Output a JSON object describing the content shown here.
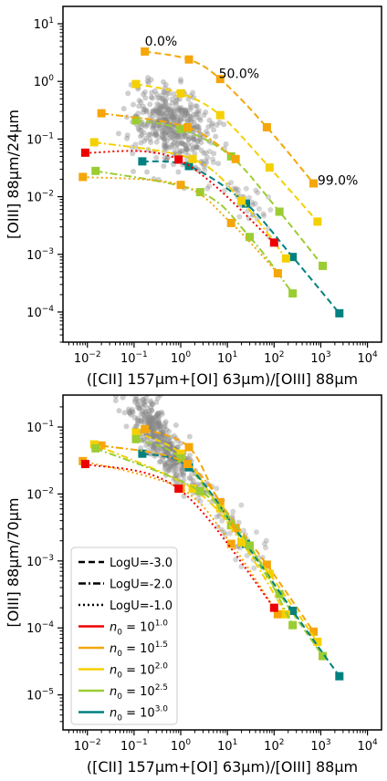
{
  "chart_data": [
    {
      "type": "scatter",
      "id": "top",
      "xlabel": "([CII] 157μm+[OI] 63μm)/[OIII] 88μm",
      "ylabel": "[OIII] 88μm/24μm",
      "xscale": "log",
      "yscale": "log",
      "xlim": [
        0.003,
        20000
      ],
      "ylim": [
        3e-05,
        20
      ],
      "xticks": [
        {
          "v": 0.01,
          "b": "10",
          "e": "−2"
        },
        {
          "v": 0.1,
          "b": "10",
          "e": "−1"
        },
        {
          "v": 1,
          "b": "10",
          "e": "0"
        },
        {
          "v": 10,
          "b": "10",
          "e": "1"
        },
        {
          "v": 100,
          "b": "10",
          "e": "2"
        },
        {
          "v": 1000,
          "b": "10",
          "e": "3"
        },
        {
          "v": 10000,
          "b": "10",
          "e": "4"
        }
      ],
      "yticks": [
        {
          "v": 0.0001,
          "b": "10",
          "e": "−4"
        },
        {
          "v": 0.001,
          "b": "10",
          "e": "−3"
        },
        {
          "v": 0.01,
          "b": "10",
          "e": "−2"
        },
        {
          "v": 0.1,
          "b": "10",
          "e": "−1"
        },
        {
          "v": 1,
          "b": "10",
          "e": "0"
        },
        {
          "v": 10,
          "b": "10",
          "e": "1"
        }
      ],
      "annotations": [
        {
          "text": "0.0%",
          "x": 0.17,
          "y": 4.2
        },
        {
          "text": "50.0%",
          "x": 6.5,
          "y": 1.15
        },
        {
          "text": "99.0%",
          "x": 850,
          "y": 0.016
        }
      ],
      "observations": {
        "color": "#888888",
        "xc": 0.6,
        "yc": 0.18,
        "sx": 0.42,
        "sy": 0.32,
        "slope": -0.12,
        "n": 420,
        "tail": [
          [
            3,
            0.04
          ],
          [
            20,
            0.012
          ],
          [
            40,
            0.006
          ]
        ]
      },
      "series": [
        {
          "logU": -3.0,
          "n0": 1.5,
          "color": "#f5a60a",
          "dash": "dash",
          "x": [
            0.17,
            1.5,
            7,
            70,
            700
          ],
          "y": [
            3.3,
            2.4,
            1.1,
            0.16,
            0.017
          ]
        },
        {
          "logU": -3.0,
          "n0": 2.0,
          "color": "#f5d000",
          "dash": "dash",
          "x": [
            0.11,
            1.0,
            7,
            80,
            850
          ],
          "y": [
            0.9,
            0.62,
            0.26,
            0.032,
            0.0037
          ]
        },
        {
          "logU": -3.0,
          "n0": 2.5,
          "color": "#9acd32",
          "dash": "dash",
          "x": [
            0.11,
            1.0,
            12,
            130,
            1100
          ],
          "y": [
            0.21,
            0.15,
            0.05,
            0.0055,
            0.00063
          ]
        },
        {
          "logU": -3.0,
          "n0": 3.0,
          "color": "#008080",
          "dash": "dash",
          "x": [
            0.15,
            1.5,
            25,
            250,
            2500
          ],
          "y": [
            0.041,
            0.034,
            0.0076,
            0.0009,
            9.5e-05
          ]
        },
        {
          "logU": -2.0,
          "n0": 1.5,
          "color": "#f5a60a",
          "dash": "dashdot",
          "x": [
            0.02,
            1.4,
            15
          ],
          "y": [
            0.28,
            0.16,
            0.045
          ]
        },
        {
          "logU": -2.0,
          "n0": 2.0,
          "color": "#f5d000",
          "dash": "dashdot",
          "x": [
            0.014,
            1.8,
            20,
            180
          ],
          "y": [
            0.088,
            0.045,
            0.0085,
            0.00085
          ]
        },
        {
          "logU": -2.0,
          "n0": 2.5,
          "color": "#9acd32",
          "dash": "dashdot",
          "x": [
            0.015,
            2.6,
            30,
            250
          ],
          "y": [
            0.028,
            0.012,
            0.002,
            0.00021
          ]
        },
        {
          "logU": -1.0,
          "n0": 1.5,
          "color": "#f5a60a",
          "dash": "dot",
          "x": [
            0.008,
            1.0,
            12,
            120
          ],
          "y": [
            0.022,
            0.016,
            0.0035,
            0.00047
          ]
        },
        {
          "logU": -1.0,
          "n0": 1.0,
          "color": "#ee0000",
          "dash": "dot",
          "x": [
            0.009,
            0.9,
            100
          ],
          "y": [
            0.058,
            0.044,
            0.0016
          ]
        }
      ]
    },
    {
      "type": "scatter",
      "id": "bottom",
      "xlabel": "([CII] 157μm+[OI] 63μm)/[OIII] 88μm",
      "ylabel": "[OIII] 88μm/70μm",
      "xscale": "log",
      "yscale": "log",
      "xlim": [
        0.003,
        20000
      ],
      "ylim": [
        3e-06,
        0.3
      ],
      "xticks": [
        {
          "v": 0.01,
          "b": "10",
          "e": "−2"
        },
        {
          "v": 0.1,
          "b": "10",
          "e": "−1"
        },
        {
          "v": 1,
          "b": "10",
          "e": "0"
        },
        {
          "v": 10,
          "b": "10",
          "e": "1"
        },
        {
          "v": 100,
          "b": "10",
          "e": "2"
        },
        {
          "v": 1000,
          "b": "10",
          "e": "3"
        },
        {
          "v": 10000,
          "b": "10",
          "e": "4"
        }
      ],
      "yticks": [
        {
          "v": 1e-05,
          "b": "10",
          "e": "−5"
        },
        {
          "v": 0.0001,
          "b": "10",
          "e": "−4"
        },
        {
          "v": 0.001,
          "b": "10",
          "e": "−3"
        },
        {
          "v": 0.01,
          "b": "10",
          "e": "−2"
        },
        {
          "v": 0.1,
          "b": "10",
          "e": "−1"
        }
      ],
      "observations": {
        "color": "#888888",
        "xc": 0.35,
        "yc": 0.07,
        "sx": 0.35,
        "sy": 0.22,
        "slope": -0.85,
        "n": 420,
        "tail": [
          [
            3,
            0.012
          ],
          [
            10,
            0.004
          ],
          [
            30,
            0.0015
          ]
        ]
      },
      "series": [
        {
          "logU": -3.0,
          "n0": 1.5,
          "color": "#f5a60a",
          "dash": "dash",
          "x": [
            0.17,
            1.5,
            7,
            70,
            700
          ],
          "y": [
            0.093,
            0.05,
            0.0075,
            0.00088,
            8.8e-05
          ]
        },
        {
          "logU": -3.0,
          "n0": 2.0,
          "color": "#f5d000",
          "dash": "dash",
          "x": [
            0.11,
            1.0,
            7,
            80,
            850
          ],
          "y": [
            0.083,
            0.04,
            0.0061,
            0.00064,
            6.2e-05
          ]
        },
        {
          "logU": -3.0,
          "n0": 2.5,
          "color": "#9acd32",
          "dash": "dash",
          "x": [
            0.11,
            1.0,
            12,
            130,
            1100
          ],
          "y": [
            0.066,
            0.034,
            0.0034,
            0.00032,
            3.8e-05
          ]
        },
        {
          "logU": -3.0,
          "n0": 3.0,
          "color": "#008080",
          "dash": "dash",
          "x": [
            0.15,
            1.5,
            25,
            250,
            2500
          ],
          "y": [
            0.04,
            0.025,
            0.0018,
            0.00018,
            1.9e-05
          ]
        },
        {
          "logU": -2.0,
          "n0": 1.5,
          "color": "#f5a60a",
          "dash": "dashdot",
          "x": [
            0.02,
            1.4,
            15
          ],
          "y": [
            0.053,
            0.028,
            0.0031
          ]
        },
        {
          "logU": -2.0,
          "n0": 2.0,
          "color": "#f5d000",
          "dash": "dashdot",
          "x": [
            0.014,
            1.8,
            20,
            180
          ],
          "y": [
            0.055,
            0.012,
            0.0019,
            0.00016
          ]
        },
        {
          "logU": -2.0,
          "n0": 2.5,
          "color": "#9acd32",
          "dash": "dashdot",
          "x": [
            0.015,
            2.6,
            30,
            250
          ],
          "y": [
            0.048,
            0.011,
            0.0017,
            0.00011
          ]
        },
        {
          "logU": -1.0,
          "n0": 1.5,
          "color": "#f5a60a",
          "dash": "dot",
          "x": [
            0.008,
            1.0,
            12,
            120
          ],
          "y": [
            0.031,
            0.012,
            0.0018,
            0.00016
          ]
        },
        {
          "logU": -1.0,
          "n0": 1.0,
          "color": "#ee0000",
          "dash": "dot",
          "x": [
            0.009,
            0.9,
            100
          ],
          "y": [
            0.028,
            0.012,
            0.0002
          ]
        }
      ],
      "legend": {
        "placement": "lower-left",
        "entries": [
          {
            "style": "dash",
            "color": "#000000",
            "label": "LogU=-3.0"
          },
          {
            "style": "dashdot",
            "color": "#000000",
            "label": "LogU=-2.0"
          },
          {
            "style": "dot",
            "color": "#000000",
            "label": "LogU=-1.0"
          },
          {
            "style": "solid",
            "color": "#ee0000",
            "label": "n",
            "sub": "0",
            "mid": " = 10",
            "sup": "1.0"
          },
          {
            "style": "solid",
            "color": "#f5a60a",
            "label": "n",
            "sub": "0",
            "mid": " = 10",
            "sup": "1.5"
          },
          {
            "style": "solid",
            "color": "#f5d000",
            "label": "n",
            "sub": "0",
            "mid": " = 10",
            "sup": "2.0"
          },
          {
            "style": "solid",
            "color": "#9acd32",
            "label": "n",
            "sub": "0",
            "mid": " = 10",
            "sup": "2.5"
          },
          {
            "style": "solid",
            "color": "#008080",
            "label": "n",
            "sub": "0",
            "mid": " = 10",
            "sup": "3.0"
          }
        ]
      }
    }
  ]
}
